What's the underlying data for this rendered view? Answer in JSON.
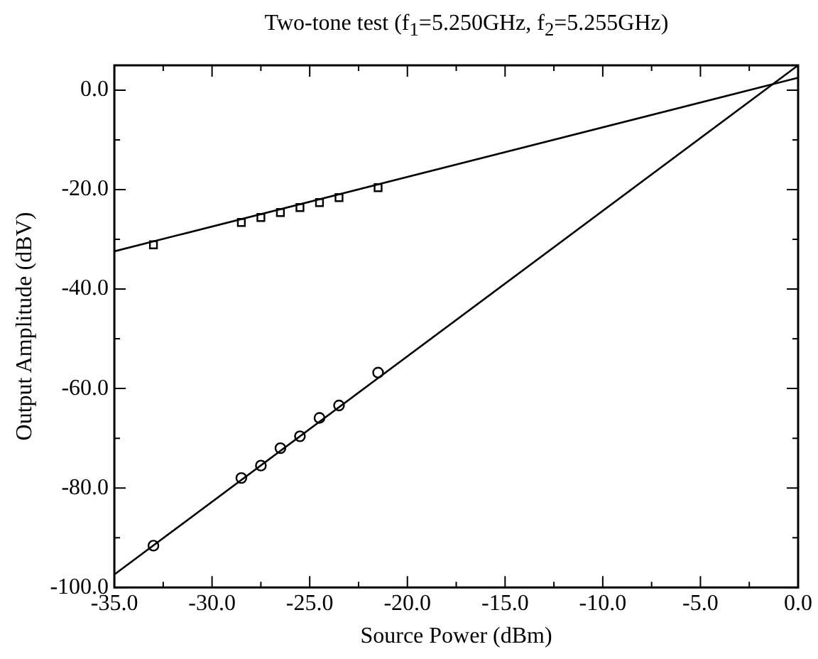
{
  "chart_data": {
    "type": "scatter",
    "title": "Two-tone test (f$_{1}$=5.250GHz, f$_{2}$=5.255GHz)",
    "xlabel": "Source Power (dBm)",
    "ylabel": "Output Amplitude (dBV)",
    "xlim": [
      -35,
      0
    ],
    "ylim": [
      -100,
      5
    ],
    "xticks": [
      {
        "value": -35,
        "label": "-35.0"
      },
      {
        "value": -32.5,
        "label": null
      },
      {
        "value": -30,
        "label": "-30.0"
      },
      {
        "value": -27.5,
        "label": null
      },
      {
        "value": -25,
        "label": "-25.0"
      },
      {
        "value": -22.5,
        "label": null
      },
      {
        "value": -20,
        "label": "-20.0"
      },
      {
        "value": -17.5,
        "label": null
      },
      {
        "value": -15,
        "label": "-15.0"
      },
      {
        "value": -12.5,
        "label": null
      },
      {
        "value": -10,
        "label": "-10.0"
      },
      {
        "value": -7.5,
        "label": null
      },
      {
        "value": -5,
        "label": "-5.0"
      },
      {
        "value": -2.5,
        "label": null
      },
      {
        "value": 0,
        "label": "0.0"
      }
    ],
    "yticks": [
      {
        "value": -100,
        "label": "-100.0"
      },
      {
        "value": -90,
        "label": null
      },
      {
        "value": -80,
        "label": "-80.0"
      },
      {
        "value": -70,
        "label": null
      },
      {
        "value": -60,
        "label": "-60.0"
      },
      {
        "value": -50,
        "label": null
      },
      {
        "value": -40,
        "label": "-40.0"
      },
      {
        "value": -30,
        "label": null
      },
      {
        "value": -20,
        "label": "-20.0"
      },
      {
        "value": -10,
        "label": null
      },
      {
        "value": 0,
        "label": "0.0"
      }
    ],
    "grid": false,
    "legend": false,
    "series": [
      {
        "marker": "square",
        "color": "#000000",
        "x": [
          -33,
          -28.5,
          -27.5,
          -26.5,
          -25.5,
          -24.5,
          -23.5,
          -21.5
        ],
        "values": [
          -31.1,
          -26.6,
          -25.6,
          -24.6,
          -23.6,
          -22.6,
          -21.6,
          -19.6
        ]
      },
      {
        "marker": "circle",
        "color": "#000000",
        "x": [
          -33,
          -28.5,
          -27.5,
          -26.5,
          -25.5,
          -24.5,
          -23.5,
          -21.5
        ],
        "values": [
          -91.6,
          -78.0,
          -75.5,
          -72.0,
          -69.6,
          -65.9,
          -63.4,
          -56.8
        ]
      },
      {
        "type": "line",
        "marker": "none",
        "line_style": "solid",
        "color": "#000000",
        "x": [
          -35,
          0
        ],
        "values": [
          -32.4,
          2.5
        ]
      },
      {
        "type": "line",
        "marker": "none",
        "line_style": "solid",
        "color": "#000000",
        "x": [
          -35,
          0
        ],
        "values": [
          -97.4,
          5
        ]
      }
    ]
  }
}
